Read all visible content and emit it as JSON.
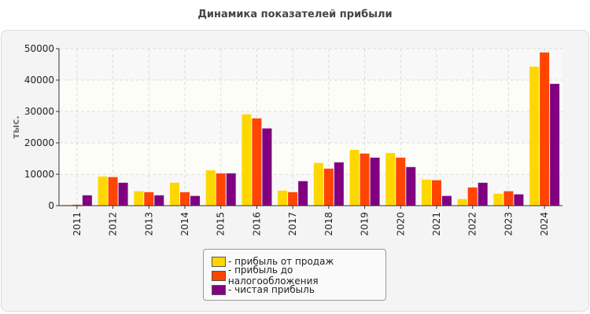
{
  "chart_data": {
    "type": "bar",
    "title": "Динамика показателей прибыли",
    "ylabel": "тыс.",
    "xlabel": "",
    "ylim": [
      0,
      50000
    ],
    "yticks": [
      0,
      10000,
      20000,
      30000,
      40000,
      50000
    ],
    "grid": true,
    "legend_position": "bottom",
    "categories": [
      "2011",
      "2012",
      "2013",
      "2014",
      "2015",
      "2016",
      "2017",
      "2018",
      "2019",
      "2020",
      "2021",
      "2022",
      "2023",
      "2024"
    ],
    "series": [
      {
        "name": "- прибыль от продаж",
        "color": "#ffd700",
        "values": [
          300,
          9300,
          4600,
          7300,
          11300,
          29100,
          4800,
          13600,
          17800,
          16800,
          8300,
          2100,
          3800,
          44300
        ]
      },
      {
        "name": "- прибыль до налогообложения",
        "color": "#ff4500",
        "values": [
          300,
          9100,
          4300,
          4300,
          10300,
          27800,
          4300,
          11800,
          16600,
          15300,
          8100,
          5800,
          4600,
          48800
        ]
      },
      {
        "name": "- чистая прибыль",
        "color": "#800080",
        "values": [
          3300,
          7300,
          3300,
          3100,
          10300,
          24600,
          7800,
          13800,
          15300,
          12300,
          3100,
          7300,
          3600,
          38800
        ]
      }
    ]
  }
}
